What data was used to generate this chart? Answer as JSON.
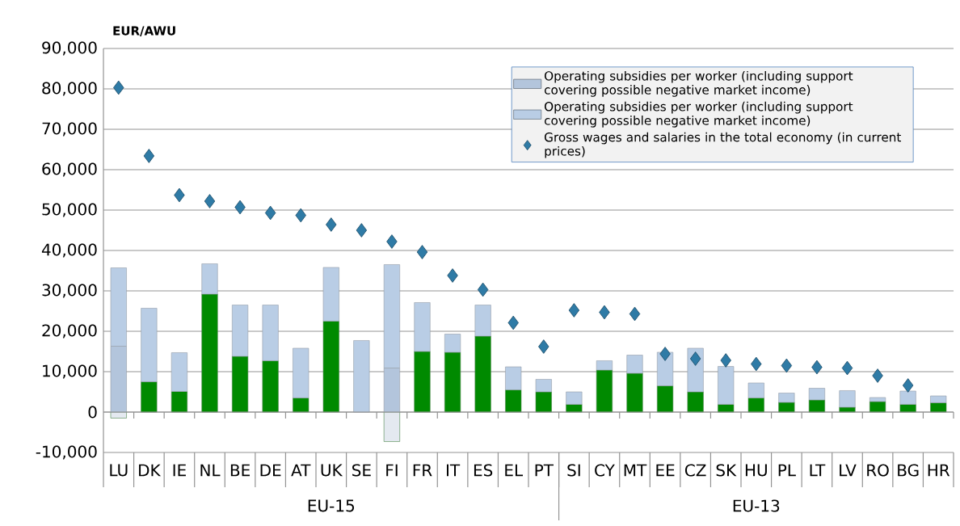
{
  "chart_data": {
    "type": "bar",
    "stacked": true,
    "ylabel": "EUR/AWU",
    "categories": [
      "LU",
      "DK",
      "IE",
      "NL",
      "BE",
      "DE",
      "AT",
      "UK",
      "SE",
      "FI",
      "FR",
      "IT",
      "ES",
      "EL",
      "PT",
      "SI",
      "CY",
      "MT",
      "EE",
      "CZ",
      "SK",
      "HU",
      "PL",
      "LT",
      "LV",
      "RO",
      "BG",
      "HR"
    ],
    "series": [
      {
        "color": "#008a00",
        "colors": [
          "#e4e9f0",
          "#008a00",
          "#008a00",
          "#008a00",
          "#008a00",
          "#008a00",
          "#008a00",
          "#008a00",
          "#008a00",
          "#e4e9f0",
          "#008a00",
          "#008a00",
          "#008a00",
          "#008a00",
          "#008a00",
          "#008a00",
          "#008a00",
          "#008a00",
          "#008a00",
          "#008a00",
          "#008a00",
          "#008a00",
          "#008a00",
          "#008a00",
          "#008a00",
          "#008a00",
          "#008a00",
          "#008a00"
        ],
        "values": [
          -1500,
          7500,
          5100,
          29200,
          13800,
          12700,
          3500,
          22500,
          null,
          -7300,
          15000,
          14800,
          18800,
          5500,
          5000,
          1900,
          10400,
          9600,
          6500,
          5000,
          1900,
          3500,
          2400,
          3000,
          1200,
          2600,
          1900,
          2300
        ]
      },
      {
        "name": "Operating subsidies per worker (including support covering possible negative market income)",
        "color": "#b3c5dc",
        "values": [
          16300,
          null,
          null,
          null,
          null,
          null,
          null,
          null,
          null,
          10900,
          null,
          null,
          null,
          null,
          null,
          null,
          null,
          null,
          null,
          null,
          null,
          null,
          null,
          null,
          null,
          null,
          null,
          null
        ]
      },
      {
        "name": "Operating subsidies per worker (including support covering possible negative market income)",
        "color": "#b9cde5",
        "values": [
          19400,
          18200,
          9600,
          7500,
          12700,
          13800,
          12300,
          13300,
          17700,
          25600,
          12100,
          4500,
          7700,
          5700,
          3100,
          3100,
          2300,
          4500,
          8300,
          10800,
          9400,
          3700,
          2300,
          2900,
          4100,
          1000,
          3300,
          1700
        ]
      },
      {
        "name": "Gross wages and salaries in the total economy (in current prices)",
        "type": "scatter",
        "color": "#2f7ba6",
        "values": [
          80300,
          63400,
          53700,
          52200,
          50700,
          49300,
          48700,
          46400,
          45000,
          42200,
          39600,
          33800,
          30300,
          22100,
          16200,
          25200,
          24700,
          24300,
          14400,
          13200,
          12800,
          11900,
          11500,
          11100,
          10900,
          9000,
          6600,
          null
        ]
      }
    ],
    "ylim": [
      -10000,
      90000
    ],
    "yticks": [
      {
        "value": -10000,
        "label": "-10,000"
      },
      0,
      {
        "value": 10000,
        "label": "10,000"
      },
      {
        "value": 20000,
        "label": "20,000"
      },
      {
        "value": 30000,
        "label": "30,000"
      },
      {
        "value": 40000,
        "label": "40,000"
      },
      {
        "value": 50000,
        "label": "50,000"
      },
      {
        "value": 60000,
        "label": "60,000"
      },
      {
        "value": 70000,
        "label": "70,000"
      },
      {
        "value": 80000,
        "label": "80,000"
      },
      {
        "value": 90000,
        "label": "90,000"
      }
    ],
    "grid": "y",
    "legend": "top right",
    "marker": "diamond",
    "annotations": [
      "EU-15",
      "EU-13"
    ]
  }
}
